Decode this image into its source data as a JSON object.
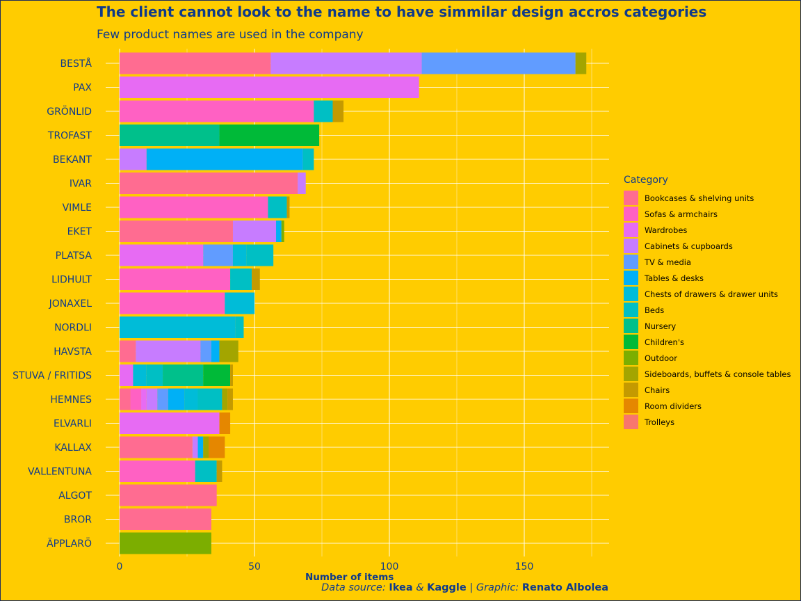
{
  "title": "The client cannot look to the name to have simmilar design accros categories",
  "subtitle": "Few product names are used in the company",
  "caption": {
    "prefix": "Data source: ",
    "source1": "Ikea",
    "amp": " & ",
    "source2": "Kaggle",
    "mid": " | Graphic: ",
    "author": "Renato Albolea"
  },
  "chart_data": {
    "type": "bar",
    "orientation": "horizontal",
    "stacked": true,
    "xlabel": "Number of items",
    "ylabel": "",
    "xlim": [
      -4,
      181
    ],
    "xticks": [
      0,
      50,
      100,
      150
    ],
    "grid": true,
    "legend_position": "right",
    "legend_title": "Category",
    "categories": [
      "BESTÅ",
      "PAX",
      "GRÖNLID",
      "TROFAST",
      "BEKANT",
      "IVAR",
      "VIMLE",
      "EKET",
      "PLATSA",
      "LIDHULT",
      "JONAXEL",
      "NORDLI",
      "HAVSTA",
      "STUVA / FRITIDS",
      "HEMNES",
      "ELVARLI",
      "KALLAX",
      "VALLENTUNA",
      "ALGOT",
      "BROR",
      "ÄPPLARÖ"
    ],
    "series": [
      {
        "name": "Bookcases & shelving units",
        "color": "#FF6C91",
        "values": [
          56,
          0,
          0,
          0,
          0,
          66,
          0,
          42,
          0,
          0,
          0,
          0,
          6,
          0,
          4,
          0,
          27,
          0,
          36,
          34,
          0
        ]
      },
      {
        "name": "Sofas & armchairs",
        "color": "#FF61C3",
        "values": [
          0,
          0,
          72,
          0,
          0,
          0,
          55,
          0,
          0,
          41,
          39,
          0,
          0,
          0,
          4,
          0,
          0,
          28,
          0,
          0,
          0
        ]
      },
      {
        "name": "Wardrobes",
        "color": "#E76BF3",
        "values": [
          0,
          111,
          0,
          0,
          0,
          0,
          0,
          0,
          31,
          0,
          0,
          0,
          0,
          5,
          2,
          37,
          0,
          0,
          0,
          0,
          0
        ]
      },
      {
        "name": "Cabinets & cupboards",
        "color": "#C77CFF",
        "values": [
          56,
          0,
          0,
          0,
          10,
          3,
          0,
          16,
          0,
          0,
          0,
          0,
          24,
          0,
          4,
          0,
          2,
          0,
          0,
          0,
          0
        ]
      },
      {
        "name": "TV & media",
        "color": "#619CFF",
        "values": [
          57,
          0,
          0,
          0,
          0,
          0,
          0,
          0,
          11,
          0,
          0,
          0,
          4,
          0,
          4,
          0,
          0,
          0,
          0,
          0,
          0
        ]
      },
      {
        "name": "Tables & desks",
        "color": "#00B0F6",
        "values": [
          0,
          0,
          0,
          0,
          58,
          0,
          0,
          2,
          0,
          0,
          0,
          0,
          3,
          0,
          6,
          0,
          2,
          0,
          0,
          0,
          0
        ]
      },
      {
        "name": "Chests of drawers & drawer units",
        "color": "#00BCD8",
        "values": [
          0,
          0,
          0,
          0,
          0,
          0,
          0,
          0,
          5,
          0,
          11,
          43,
          0,
          5,
          5,
          0,
          0,
          0,
          0,
          0,
          0
        ]
      },
      {
        "name": "Beds",
        "color": "#00BFC4",
        "values": [
          0,
          0,
          7,
          0,
          4,
          0,
          7,
          0,
          10,
          8,
          0,
          3,
          0,
          6,
          9,
          0,
          0,
          8,
          0,
          0,
          0
        ]
      },
      {
        "name": "Nursery",
        "color": "#00C08B",
        "values": [
          0,
          0,
          0,
          37,
          0,
          0,
          0,
          0,
          0,
          0,
          0,
          0,
          0,
          15,
          0,
          0,
          0,
          0,
          0,
          0,
          0
        ]
      },
      {
        "name": "Children's",
        "color": "#00BA38",
        "values": [
          0,
          0,
          0,
          37,
          0,
          0,
          0,
          0,
          0,
          0,
          0,
          0,
          0,
          10,
          0,
          0,
          0,
          0,
          0,
          0,
          0
        ]
      },
      {
        "name": "Outdoor",
        "color": "#7CAE00",
        "values": [
          0,
          0,
          0,
          0,
          0,
          0,
          0,
          1,
          0,
          0,
          0,
          0,
          0,
          0,
          0,
          0,
          0,
          0,
          0,
          0,
          34
        ]
      },
      {
        "name": "Sideboards, buffets & console tables",
        "color": "#A3A500",
        "values": [
          4,
          0,
          0,
          0,
          0,
          0,
          0,
          0,
          0,
          0,
          0,
          0,
          7,
          0,
          2,
          0,
          2,
          0,
          0,
          0,
          0
        ]
      },
      {
        "name": "Chairs",
        "color": "#C49A00",
        "values": [
          0,
          0,
          4,
          0,
          0,
          0,
          1,
          0,
          0,
          3,
          0,
          0,
          0,
          1,
          2,
          0,
          0,
          2,
          0,
          0,
          0
        ]
      },
      {
        "name": "Room dividers",
        "color": "#E58700",
        "values": [
          0,
          0,
          0,
          0,
          0,
          0,
          0,
          0,
          0,
          0,
          0,
          0,
          0,
          0,
          0,
          4,
          6,
          0,
          0,
          0,
          0
        ]
      },
      {
        "name": "Trolleys",
        "color": "#F8766D",
        "values": [
          0,
          0,
          0,
          0,
          0,
          0,
          0,
          0,
          0,
          0,
          0,
          0,
          0,
          0,
          0,
          0,
          0,
          0,
          0,
          0,
          0
        ]
      }
    ]
  }
}
